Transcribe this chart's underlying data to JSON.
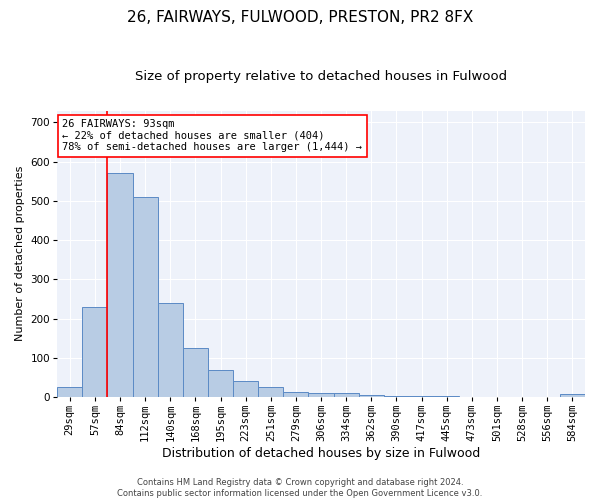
{
  "title_line1": "26, FAIRWAYS, FULWOOD, PRESTON, PR2 8FX",
  "title_line2": "Size of property relative to detached houses in Fulwood",
  "xlabel": "Distribution of detached houses by size in Fulwood",
  "ylabel": "Number of detached properties",
  "bar_labels": [
    "29sqm",
    "57sqm",
    "84sqm",
    "112sqm",
    "140sqm",
    "168sqm",
    "195sqm",
    "223sqm",
    "251sqm",
    "279sqm",
    "306sqm",
    "334sqm",
    "362sqm",
    "390sqm",
    "417sqm",
    "445sqm",
    "473sqm",
    "501sqm",
    "528sqm",
    "556sqm",
    "584sqm"
  ],
  "bar_values": [
    25,
    230,
    570,
    510,
    240,
    125,
    70,
    42,
    25,
    13,
    10,
    10,
    5,
    3,
    2,
    2,
    1,
    1,
    1,
    0,
    7
  ],
  "bar_color": "#b8cce4",
  "bar_edge_color": "#5b8ac5",
  "vline_color": "red",
  "vline_pos": 1.5,
  "annotation_text": "26 FAIRWAYS: 93sqm\n← 22% of detached houses are smaller (404)\n78% of semi-detached houses are larger (1,444) →",
  "annotation_box_color": "white",
  "annotation_box_edge_color": "red",
  "ylim": [
    0,
    730
  ],
  "yticks": [
    0,
    100,
    200,
    300,
    400,
    500,
    600,
    700
  ],
  "axes_background": "#eef2fa",
  "footer_text": "Contains HM Land Registry data © Crown copyright and database right 2024.\nContains public sector information licensed under the Open Government Licence v3.0.",
  "title1_fontsize": 11,
  "title2_fontsize": 9.5,
  "xlabel_fontsize": 9,
  "ylabel_fontsize": 8,
  "tick_fontsize": 7.5,
  "annotation_fontsize": 7.5
}
